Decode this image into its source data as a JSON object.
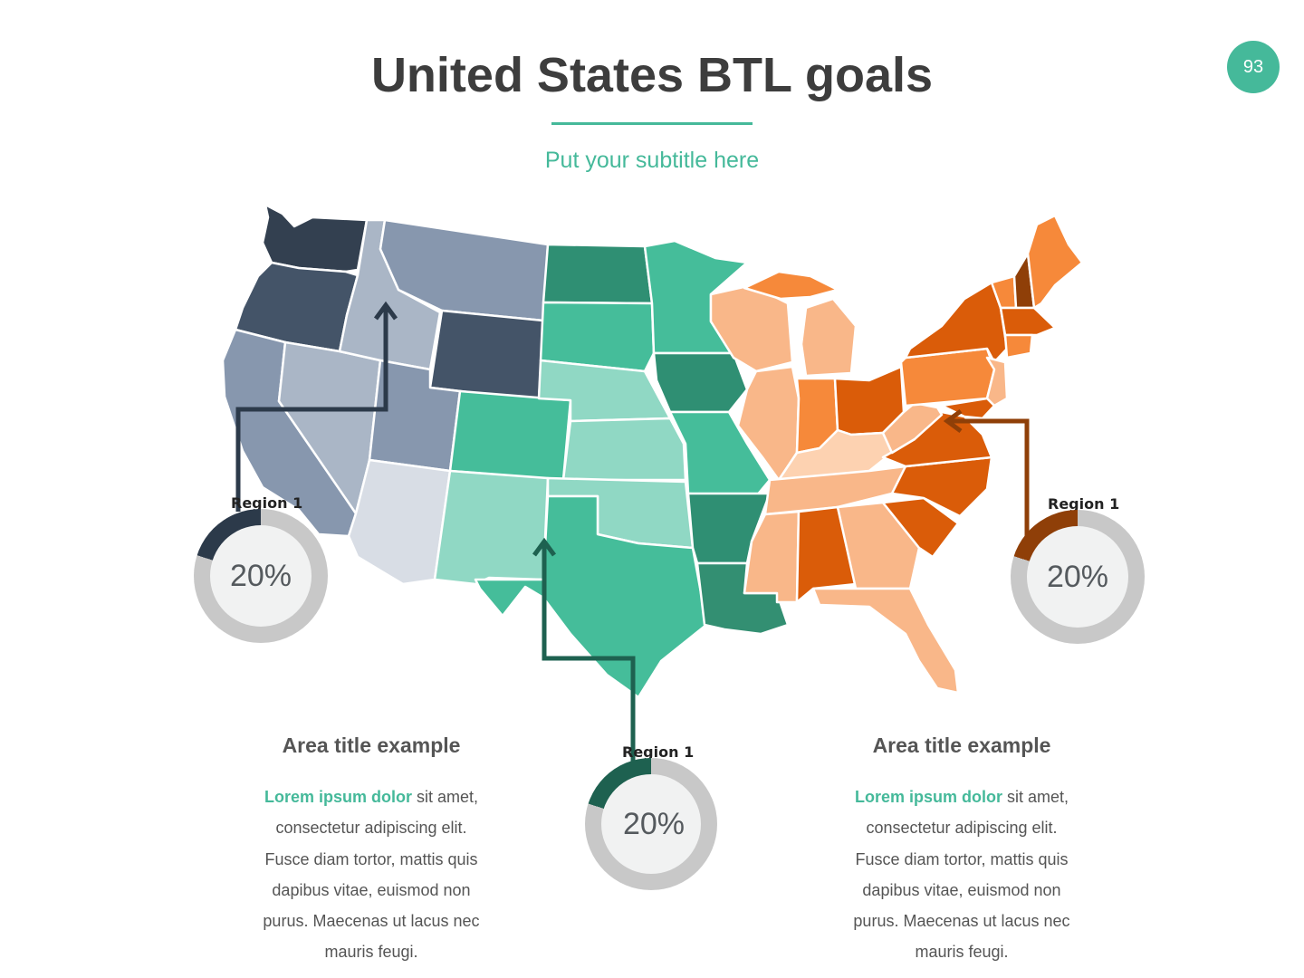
{
  "slide": {
    "title": "United States BTL goals",
    "subtitle": "Put your subtitle here",
    "page_number": "93",
    "accent_color": "#45b99a"
  },
  "regions": [
    {
      "id": "west",
      "label": "Region 1",
      "percent": "20%",
      "value": 0.2,
      "color": "#2c3a4a"
    },
    {
      "id": "central",
      "label": "Region 1",
      "percent": "20%",
      "value": 0.2,
      "color": "#1e6150"
    },
    {
      "id": "east",
      "label": "Region 1",
      "percent": "20%",
      "value": 0.2,
      "color": "#8f3f08"
    }
  ],
  "map_palettes": {
    "west": [
      "#334050",
      "#445468",
      "#8797ae",
      "#aab6c6",
      "#d8dde5"
    ],
    "central": [
      "#2f8f73",
      "#45bd9a",
      "#90d8c4",
      "#338f72"
    ],
    "east": [
      "#f6893a",
      "#da5c09",
      "#f9b789",
      "#fdd2b1",
      "#8f3f08"
    ]
  },
  "areas": [
    {
      "title": "Area title example",
      "highlight": "Lorem ipsum dolor",
      "first_line_rest": " sit amet,",
      "lines": [
        "consectetur adipiscing elit.",
        "Fusce diam tortor, mattis quis",
        "dapibus vitae, euismod non",
        "purus. Maecenas ut lacus nec",
        "mauris feugi."
      ]
    },
    {
      "title": "Area title example",
      "highlight": "Lorem ipsum dolor",
      "first_line_rest": " sit amet,",
      "lines": [
        "consectetur adipiscing elit.",
        "Fusce diam tortor, mattis quis",
        "dapibus vitae, euismod non",
        "purus. Maecenas ut lacus nec",
        "mauris feugi."
      ]
    }
  ]
}
